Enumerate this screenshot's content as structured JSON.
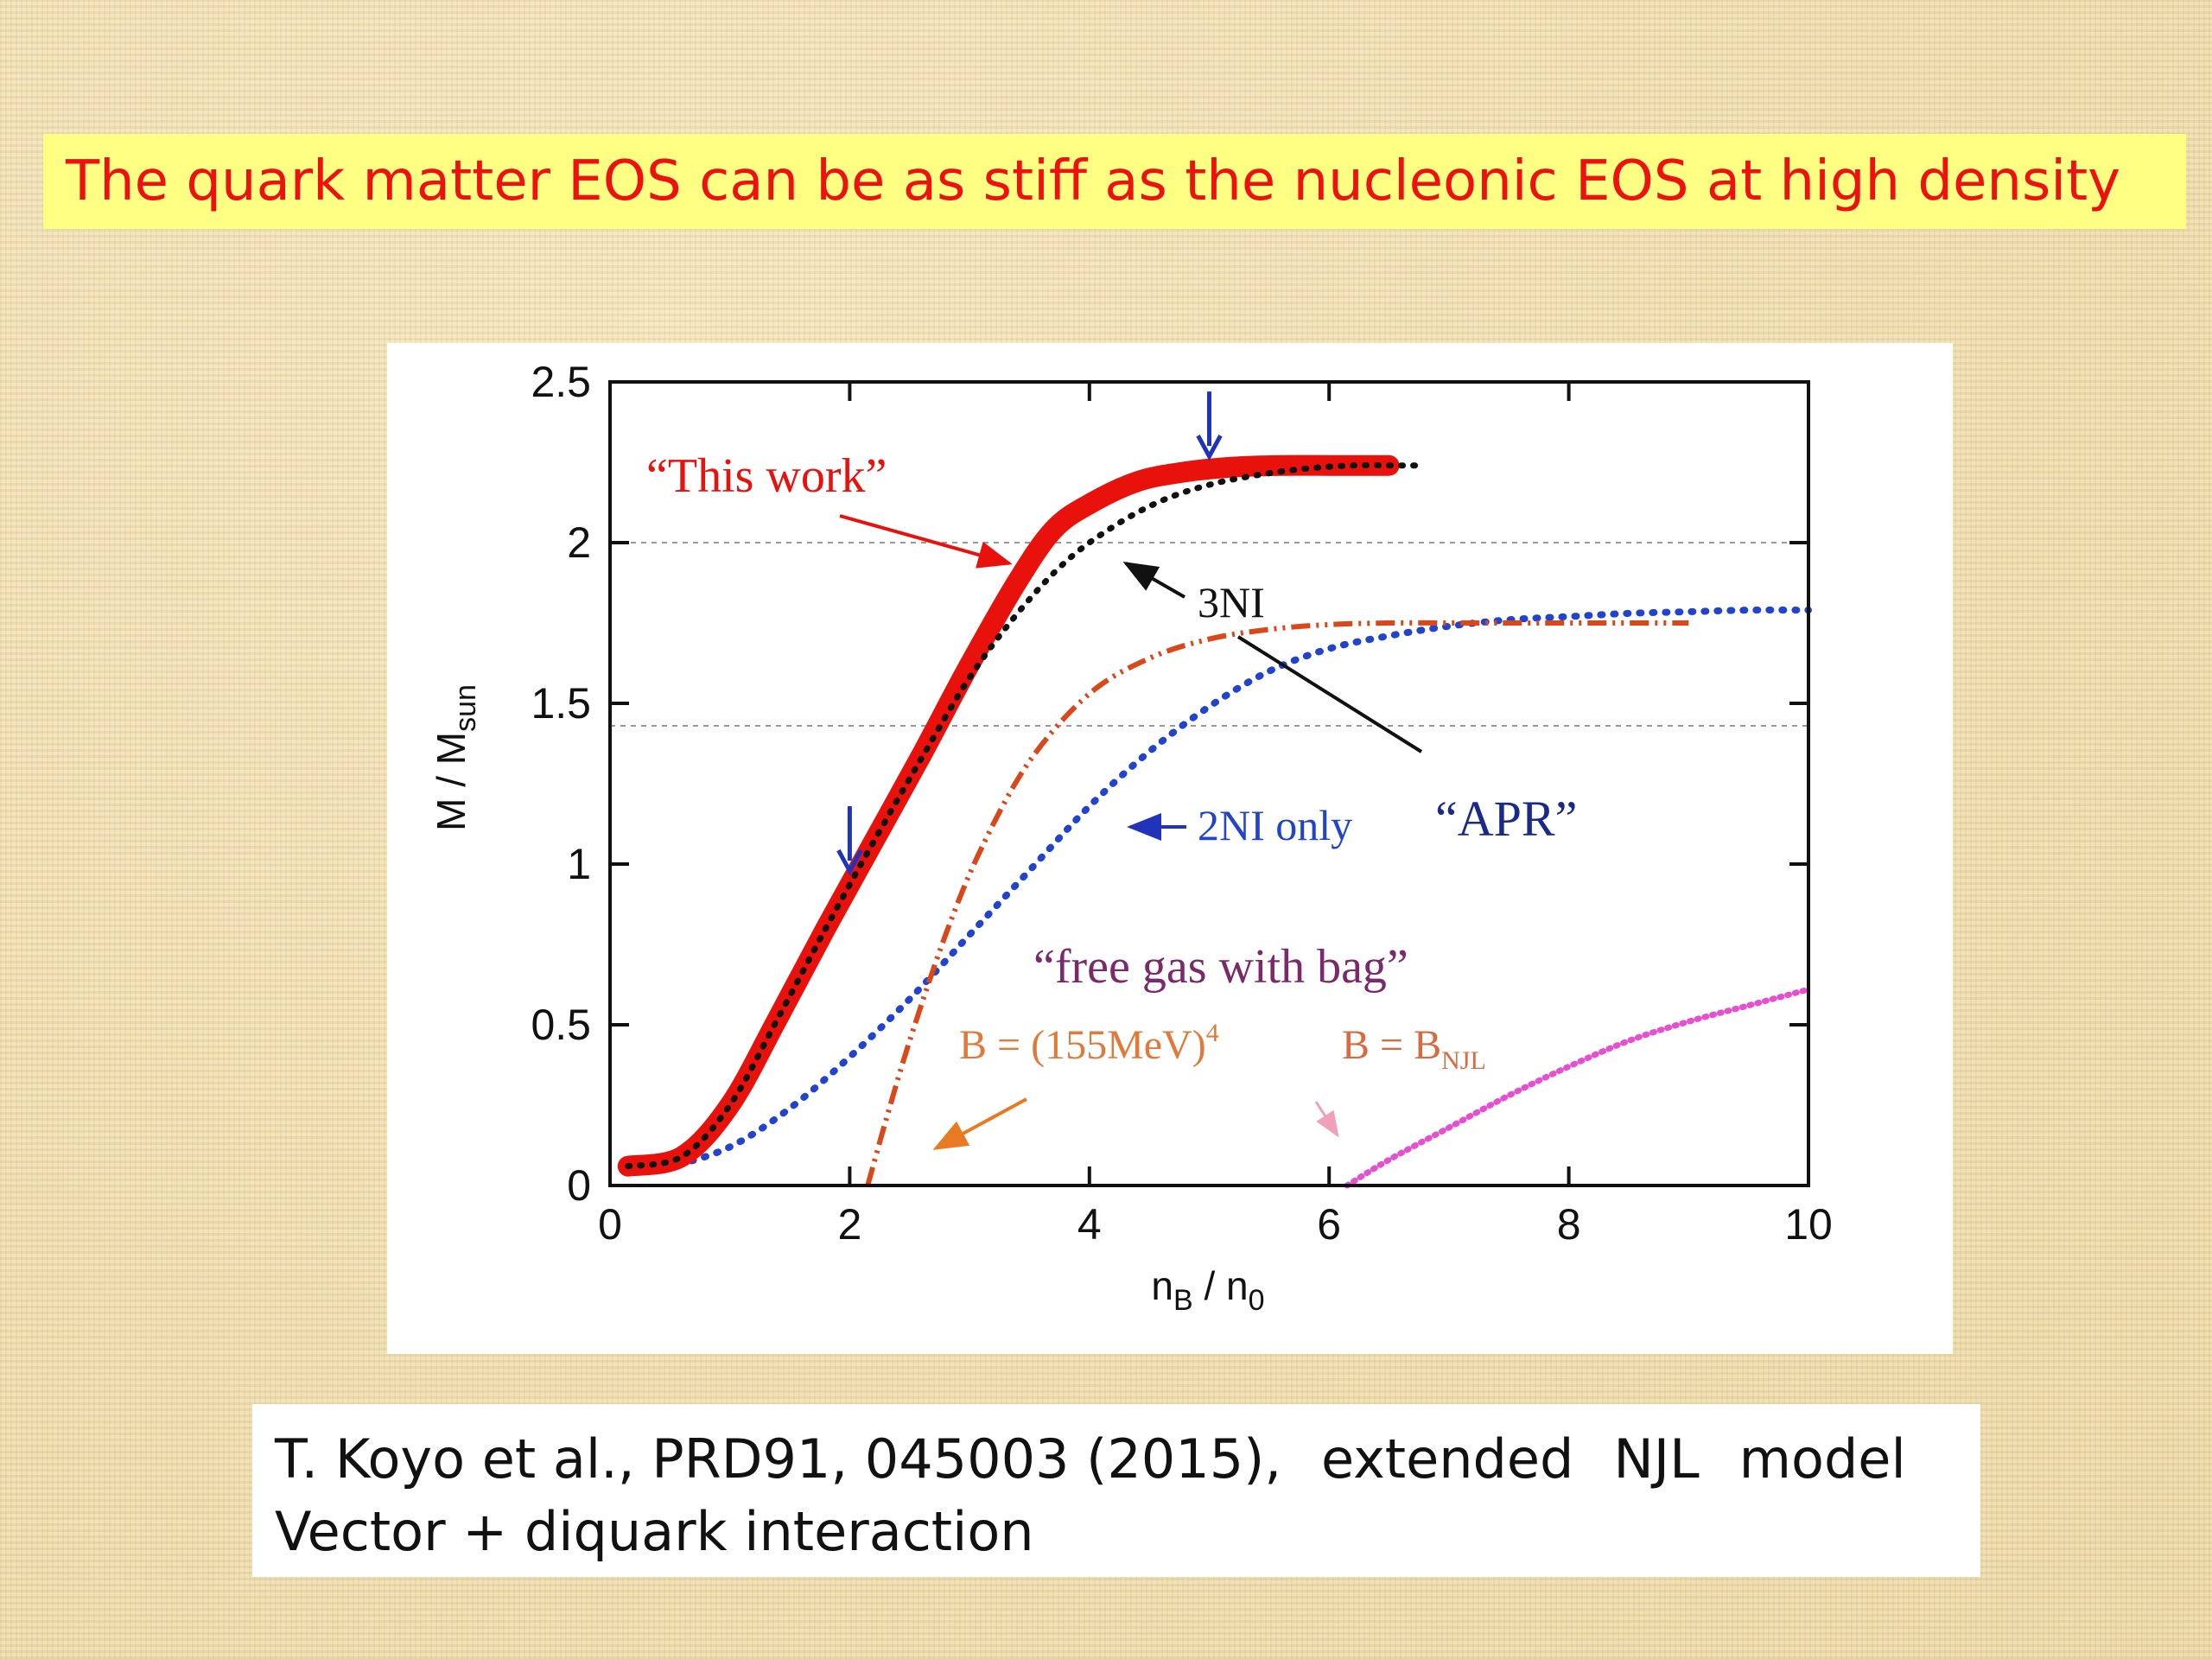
{
  "slide": {
    "title": "The quark matter EOS can be as stiff as the nucleonic EOS at high density",
    "caption_line1_parts": [
      "T. Koyo et al., PRD91, 045003 (2015),",
      "extended",
      "NJL",
      "model"
    ],
    "caption_line2": "Vector + diquark interaction"
  },
  "colors": {
    "title_text": "#ee1111",
    "title_bar": "#ffff84",
    "this_work": "#e8110c",
    "three_ni": "#111111",
    "apr": "#d9481a",
    "two_ni": "#2244cc",
    "free_gas": "#e64fd0",
    "arrow_blue": "#2233bb",
    "arrow_orange": "#e87a22",
    "arrow_pink": "#f0a0b8",
    "free_gas_label": "#7a2a6a",
    "b155_label": "#e07a3a",
    "bnjl_label": "#d86a40"
  },
  "chart_data": {
    "type": "line",
    "xlabel": "n",
    "xlabel_sub": "B",
    "xlabel_sep": " / n",
    "xlabel_sub2": "0",
    "ylabel": "M / M",
    "ylabel_sub": "sun",
    "xlim": [
      0,
      10
    ],
    "ylim": [
      0,
      2.5
    ],
    "xticks": [
      "0",
      "2",
      "4",
      "6",
      "8",
      "10"
    ],
    "yticks": [
      "0",
      "0.5",
      "1",
      "1.5",
      "2",
      "2.5"
    ],
    "xtick_values": [
      0,
      2,
      4,
      6,
      8,
      10
    ],
    "ytick_values": [
      0,
      0.5,
      1,
      1.5,
      2,
      2.5
    ],
    "reference_lines_y": [
      2.0,
      1.43
    ],
    "series": [
      {
        "key": "this_work",
        "x": [
          0.15,
          0.6,
          1.0,
          1.4,
          1.8,
          2.2,
          2.6,
          3.0,
          3.4,
          3.7,
          4.0,
          4.4,
          4.8,
          5.2,
          5.6,
          6.0,
          6.5
        ],
        "y": [
          0.06,
          0.09,
          0.25,
          0.52,
          0.8,
          1.07,
          1.34,
          1.62,
          1.88,
          2.04,
          2.12,
          2.19,
          2.22,
          2.235,
          2.24,
          2.24,
          2.24
        ]
      },
      {
        "key": "three_ni",
        "x": [
          0.15,
          0.6,
          1.0,
          1.4,
          1.8,
          2.2,
          2.6,
          3.0,
          3.4,
          3.8,
          4.2,
          4.6,
          5.0,
          5.4,
          5.8,
          6.2,
          6.6,
          6.8
        ],
        "y": [
          0.06,
          0.09,
          0.25,
          0.52,
          0.8,
          1.07,
          1.33,
          1.58,
          1.78,
          1.94,
          2.05,
          2.13,
          2.18,
          2.21,
          2.23,
          2.24,
          2.24,
          2.24
        ]
      },
      {
        "key": "apr",
        "x": [
          2.15,
          2.3,
          2.5,
          2.8,
          3.1,
          3.5,
          4.0,
          4.5,
          5.0,
          5.5,
          6.0,
          6.5,
          7.0,
          7.5,
          8.0,
          8.5,
          9.0
        ],
        "y": [
          0.0,
          0.2,
          0.45,
          0.78,
          1.05,
          1.32,
          1.53,
          1.64,
          1.7,
          1.73,
          1.745,
          1.75,
          1.75,
          1.75,
          1.75,
          1.75,
          1.75
        ]
      },
      {
        "key": "two_ni",
        "x": [
          0.15,
          0.5,
          1.0,
          1.5,
          2.0,
          2.5,
          3.0,
          3.5,
          4.0,
          4.5,
          5.0,
          5.5,
          6.0,
          6.5,
          7.0,
          7.5,
          8.0,
          8.5,
          9.0,
          9.5,
          10.0
        ],
        "y": [
          0.05,
          0.06,
          0.12,
          0.24,
          0.4,
          0.58,
          0.78,
          0.98,
          1.18,
          1.35,
          1.49,
          1.6,
          1.67,
          1.71,
          1.74,
          1.76,
          1.77,
          1.78,
          1.785,
          1.79,
          1.79
        ]
      },
      {
        "key": "free_gas",
        "x": [
          6.15,
          6.5,
          7.0,
          7.5,
          8.0,
          8.5,
          9.0,
          9.5,
          10.0
        ],
        "y": [
          0.0,
          0.08,
          0.18,
          0.28,
          0.37,
          0.45,
          0.51,
          0.56,
          0.61
        ]
      }
    ],
    "annotations": {
      "this_work": "“This work”",
      "three_ni": "3NI",
      "two_ni": "2NI only",
      "apr": "“APR”",
      "free_gas": "“free gas with bag”",
      "b155": "B = (155MeV)",
      "b155_sup": "4",
      "bnjl": "B = B",
      "bnjl_sub": "NJL"
    },
    "markers": [
      {
        "type": "down-arrow",
        "x": 2.0,
        "y": 0.93
      },
      {
        "type": "down-arrow",
        "x": 5.0,
        "y": 2.22
      }
    ]
  }
}
